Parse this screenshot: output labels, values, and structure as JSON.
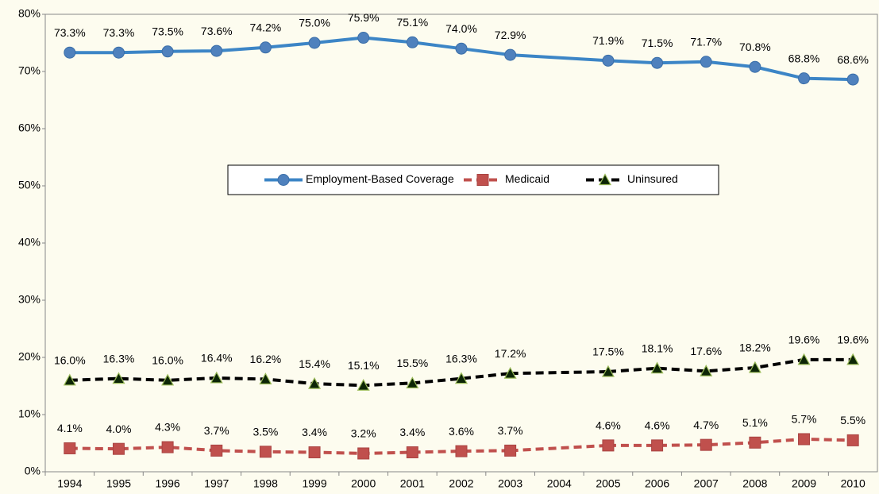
{
  "chart_data": {
    "type": "line",
    "categories": [
      "1994",
      "1995",
      "1996",
      "1997",
      "1998",
      "1999",
      "2000",
      "2001",
      "2002",
      "2003",
      "2004",
      "2005",
      "2006",
      "2007",
      "2008",
      "2009",
      "2010"
    ],
    "series": [
      {
        "name": "Employment-Based Coverage",
        "color": "#3c85c6",
        "marker": "circle",
        "dash": false,
        "values": [
          73.3,
          73.3,
          73.5,
          73.6,
          74.2,
          75.0,
          75.9,
          75.1,
          74.0,
          72.9,
          null,
          71.9,
          71.5,
          71.7,
          70.8,
          68.8,
          68.6
        ],
        "value_labels": [
          "73.3%",
          "73.3%",
          "73.5%",
          "73.6%",
          "74.2%",
          "75.0%",
          "75.9%",
          "75.1%",
          "74.0%",
          "72.9%",
          null,
          "71.9%",
          "71.5%",
          "71.7%",
          "70.8%",
          "68.8%",
          "68.6%"
        ]
      },
      {
        "name": "Medicaid",
        "color": "#c0504d",
        "marker": "square",
        "dash": true,
        "values": [
          4.1,
          4.0,
          4.3,
          3.7,
          3.5,
          3.4,
          3.2,
          3.4,
          3.6,
          3.7,
          null,
          4.6,
          4.6,
          4.7,
          5.1,
          5.7,
          5.5
        ],
        "value_labels": [
          "4.1%",
          "4.0%",
          "4.3%",
          "3.7%",
          "3.5%",
          "3.4%",
          "3.2%",
          "3.4%",
          "3.6%",
          "3.7%",
          null,
          "4.6%",
          "4.6%",
          "4.7%",
          "5.1%",
          "5.7%",
          "5.5%"
        ]
      },
      {
        "name": "Uninsured",
        "color": "#000000",
        "marker": "triangle",
        "dash": true,
        "values": [
          16.0,
          16.3,
          16.0,
          16.4,
          16.2,
          15.4,
          15.1,
          15.5,
          16.3,
          17.2,
          null,
          17.5,
          18.1,
          17.6,
          18.2,
          19.6,
          19.6
        ],
        "value_labels": [
          "16.0%",
          "16.3%",
          "16.0%",
          "16.4%",
          "16.2%",
          "15.4%",
          "15.1%",
          "15.5%",
          "16.3%",
          "17.2%",
          null,
          "17.5%",
          "18.1%",
          "17.6%",
          "18.2%",
          "19.6%",
          "19.6%"
        ]
      }
    ],
    "ylim": [
      0,
      80
    ],
    "yticks": [
      {
        "value": 0,
        "label": "0%"
      },
      {
        "value": 10,
        "label": "10%"
      },
      {
        "value": 20,
        "label": "20%"
      },
      {
        "value": 30,
        "label": "30%"
      },
      {
        "value": 40,
        "label": "40%"
      },
      {
        "value": 50,
        "label": "50%"
      },
      {
        "value": 60,
        "label": "60%"
      },
      {
        "value": 70,
        "label": "70%"
      },
      {
        "value": 80,
        "label": "80%"
      }
    ],
    "legend": "center"
  }
}
